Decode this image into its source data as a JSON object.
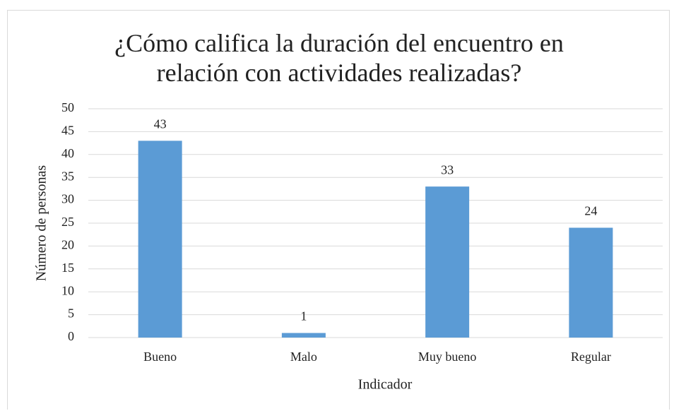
{
  "chart_data": {
    "type": "bar",
    "title": "¿Cómo califica la duración del encuentro en relación con actividades realizadas?",
    "x_label": "Indicador",
    "y_label": "Número de personas",
    "categories": [
      "Bueno",
      "Malo",
      "Muy bueno",
      "Regular"
    ],
    "values": [
      43,
      1,
      33,
      24
    ],
    "color": "#5b9bd5",
    "ylim": [
      0,
      50
    ],
    "yticks": [
      0,
      5,
      10,
      15,
      20,
      25,
      30,
      35,
      40,
      45,
      50
    ],
    "grid": true
  }
}
